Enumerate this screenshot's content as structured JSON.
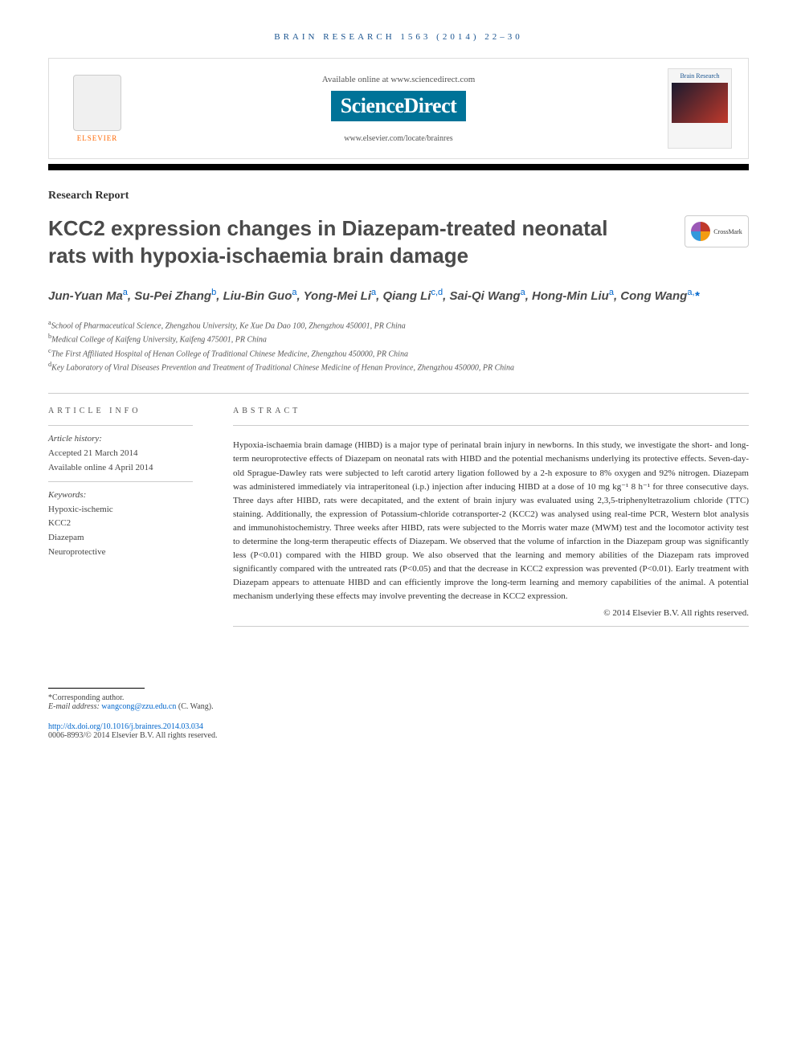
{
  "running_head": "BRAIN RESEARCH 1563 (2014) 22–30",
  "header": {
    "elsevier_label": "ELSEVIER",
    "available_text": "Available online at www.sciencedirect.com",
    "sciencedirect_label": "ScienceDirect",
    "locate_text": "www.elsevier.com/locate/brainres",
    "journal_cover_title": "Brain Research"
  },
  "article_type": "Research Report",
  "title": "KCC2 expression changes in Diazepam-treated neonatal rats with hypoxia-ischaemia brain damage",
  "crossmark_label": "CrossMark",
  "authors_html": "Jun-Yuan Ma<sup>a</sup>, Su-Pei Zhang<sup>b</sup>, Liu-Bin Guo<sup>a</sup>, Yong-Mei Li<sup>a</sup>, Qiang Li<sup>c,d</sup>, Sai-Qi Wang<sup>a</sup>, Hong-Min Liu<sup>a</sup>, Cong Wang<sup>a,</sup><span class=\"asterisk\">*</span>",
  "affiliations": [
    {
      "sup": "a",
      "text": "School of Pharmaceutical Science, Zhengzhou University, Ke Xue Da Dao 100, Zhengzhou 450001, PR China"
    },
    {
      "sup": "b",
      "text": "Medical College of Kaifeng University, Kaifeng 475001, PR China"
    },
    {
      "sup": "c",
      "text": "The First Affiliated Hospital of Henan College of Traditional Chinese Medicine, Zhengzhou 450000, PR China"
    },
    {
      "sup": "d",
      "text": "Key Laboratory of Viral Diseases Prevention and Treatment of Traditional Chinese Medicine of Henan Province, Zhengzhou 450000, PR China"
    }
  ],
  "article_info": {
    "head": "ARTICLE INFO",
    "history_label": "Article history:",
    "accepted": "Accepted 21 March 2014",
    "online": "Available online 4 April 2014",
    "keywords_label": "Keywords:",
    "keywords": [
      "Hypoxic-ischemic",
      "KCC2",
      "Diazepam",
      "Neuroprotective"
    ]
  },
  "abstract": {
    "head": "ABSTRACT",
    "text": "Hypoxia-ischaemia brain damage (HIBD) is a major type of perinatal brain injury in newborns. In this study, we investigate the short- and long-term neuroprotective effects of Diazepam on neonatal rats with HIBD and the potential mechanisms underlying its protective effects. Seven-day-old Sprague-Dawley rats were subjected to left carotid artery ligation followed by a 2-h exposure to 8% oxygen and 92% nitrogen. Diazepam was administered immediately via intraperitoneal (i.p.) injection after inducing HIBD at a dose of 10 mg kg⁻¹ 8 h⁻¹ for three consecutive days. Three days after HIBD, rats were decapitated, and the extent of brain injury was evaluated using 2,3,5-triphenyltetrazolium chloride (TTC) staining. Additionally, the expression of Potassium-chloride cotransporter-2 (KCC2) was analysed using real-time PCR, Western blot analysis and immunohistochemistry. Three weeks after HIBD, rats were subjected to the Morris water maze (MWM) test and the locomotor activity test to determine the long-term therapeutic effects of Diazepam. We observed that the volume of infarction in the Diazepam group was significantly less (P<0.01) compared with the HIBD group. We also observed that the learning and memory abilities of the Diazepam rats improved significantly compared with the untreated rats (P<0.05) and that the decrease in KCC2 expression was prevented (P<0.01). Early treatment with Diazepam appears to attenuate HIBD and can efficiently improve the long-term learning and memory capabilities of the animal. A potential mechanism underlying these effects may involve preventing the decrease in KCC2 expression.",
    "copyright": "© 2014 Elsevier B.V. All rights reserved."
  },
  "footer": {
    "corresponding_label": "*Corresponding author.",
    "email_label": "E-mail address:",
    "email": "wangcong@zzu.edu.cn",
    "email_name": "(C. Wang).",
    "doi": "http://dx.doi.org/10.1016/j.brainres.2014.03.034",
    "issn_copyright": "0006-8993/© 2014 Elsevier B.V. All rights reserved."
  },
  "colors": {
    "link": "#0066cc",
    "elsevier_orange": "#ff6600",
    "sciencedirect_bg": "#007398",
    "running_head": "#1a5490"
  },
  "typography": {
    "title_fontsize": 26,
    "authors_fontsize": 15,
    "body_fontsize": 11,
    "affil_fontsize": 10
  }
}
